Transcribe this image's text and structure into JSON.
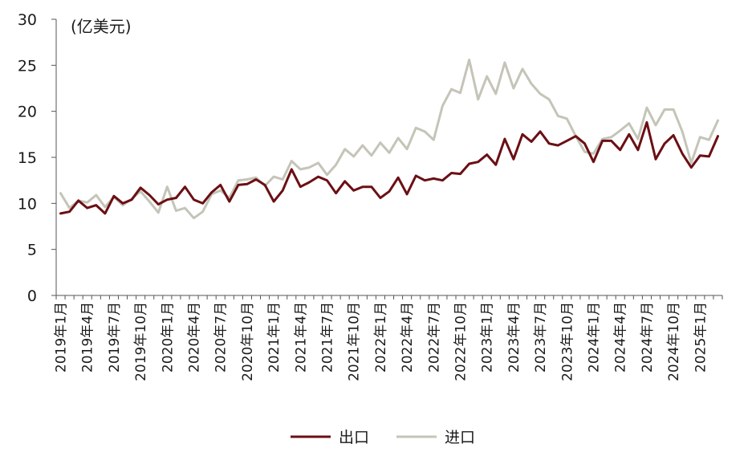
{
  "chart_data": {
    "type": "line",
    "unit_label": "(亿美元)",
    "ylim": [
      0,
      30
    ],
    "yticks": [
      0,
      5,
      10,
      15,
      20,
      25,
      30
    ],
    "x": [
      "2019年1月",
      "2019年2月",
      "2019年3月",
      "2019年4月",
      "2019年5月",
      "2019年6月",
      "2019年7月",
      "2019年8月",
      "2019年9月",
      "2019年10月",
      "2019年11月",
      "2019年12月",
      "2020年1月",
      "2020年2月",
      "2020年3月",
      "2020年4月",
      "2020年5月",
      "2020年6月",
      "2020年7月",
      "2020年8月",
      "2020年9月",
      "2020年10月",
      "2020年11月",
      "2020年12月",
      "2021年1月",
      "2021年2月",
      "2021年3月",
      "2021年4月",
      "2021年5月",
      "2021年6月",
      "2021年7月",
      "2021年8月",
      "2021年9月",
      "2021年10月",
      "2021年11月",
      "2021年12月",
      "2022年1月",
      "2022年2月",
      "2022年3月",
      "2022年4月",
      "2022年5月",
      "2022年6月",
      "2022年7月",
      "2022年8月",
      "2022年9月",
      "2022年10月",
      "2022年11月",
      "2022年12月",
      "2023年1月",
      "2023年2月",
      "2023年3月",
      "2023年4月",
      "2023年5月",
      "2023年6月",
      "2023年7月",
      "2023年8月",
      "2023年9月",
      "2023年10月",
      "2023年11月",
      "2023年12月",
      "2024年1月",
      "2024年2月",
      "2024年3月",
      "2024年4月",
      "2024年5月",
      "2024年6月",
      "2024年7月",
      "2024年8月",
      "2024年9月",
      "2024年10月",
      "2024年11月",
      "2024年12月",
      "2025年1月",
      "2025年2月",
      "2025年3月"
    ],
    "xtick_labels": [
      "2019年1月",
      "2019年4月",
      "2019年7月",
      "2019年10月",
      "2020年1月",
      "2020年4月",
      "2020年7月",
      "2020年10月",
      "2021年1月",
      "2021年4月",
      "2021年7月",
      "2021年10月",
      "2022年1月",
      "2022年4月",
      "2022年7月",
      "2022年10月",
      "2023年1月",
      "2023年4月",
      "2023年7月",
      "2023年10月",
      "2024年1月",
      "2024年4月",
      "2024年7月",
      "2024年10月",
      "2025年1月"
    ],
    "series": [
      {
        "name": "出口",
        "color": "#6b0f14",
        "values": [
          8.9,
          9.1,
          10.3,
          9.5,
          9.8,
          8.9,
          10.8,
          10.0,
          10.4,
          11.7,
          10.9,
          9.9,
          10.4,
          10.6,
          11.8,
          10.4,
          10.0,
          11.2,
          12.0,
          10.2,
          12.0,
          12.1,
          12.6,
          12.0,
          10.2,
          11.4,
          13.7,
          11.8,
          12.3,
          12.9,
          12.5,
          11.1,
          12.4,
          11.4,
          11.8,
          11.8,
          10.6,
          11.3,
          12.8,
          11.0,
          13.0,
          12.5,
          12.7,
          12.5,
          13.3,
          13.2,
          14.3,
          14.5,
          15.3,
          14.2,
          17.0,
          14.8,
          17.5,
          16.7,
          17.8,
          16.5,
          16.3,
          16.8,
          17.3,
          16.5,
          14.5,
          16.8,
          16.8,
          15.8,
          17.5,
          15.8,
          18.8,
          14.8,
          16.5,
          17.4,
          15.4,
          13.9,
          15.2,
          15.1,
          17.3
        ]
      },
      {
        "name": "进口",
        "color": "#c4c4b8",
        "values": [
          11.1,
          9.5,
          10.3,
          10.1,
          10.9,
          9.6,
          10.7,
          9.8,
          10.5,
          11.3,
          10.2,
          9.0,
          11.8,
          9.2,
          9.5,
          8.4,
          9.1,
          11.0,
          11.4,
          10.6,
          12.5,
          12.6,
          12.8,
          11.9,
          12.9,
          12.6,
          14.6,
          13.7,
          13.9,
          14.4,
          13.1,
          14.2,
          15.9,
          15.1,
          16.3,
          15.2,
          16.6,
          15.5,
          17.1,
          15.9,
          18.2,
          17.8,
          16.9,
          20.6,
          22.4,
          22.0,
          25.6,
          21.3,
          23.8,
          21.9,
          25.3,
          22.5,
          24.6,
          23.0,
          21.9,
          21.3,
          19.5,
          19.2,
          17.3,
          15.6,
          15.4,
          17.0,
          17.2,
          17.9,
          18.7,
          17.0,
          20.4,
          18.5,
          20.2,
          20.2,
          17.8,
          14.4,
          17.2,
          16.9,
          19.0
        ]
      }
    ]
  }
}
